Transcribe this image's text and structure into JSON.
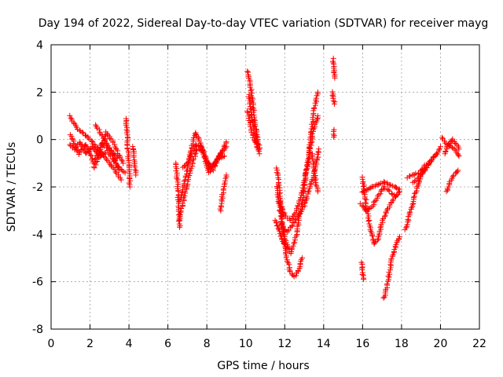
{
  "chart_data": {
    "type": "scatter",
    "title": "Day 194 of 2022, Sidereal Day-to-day VTEC variation (SDTVAR) for receiver mayg",
    "xlabel": "GPS time / hours",
    "ylabel": "SDTVAR / TECUs",
    "xlim": [
      0,
      22
    ],
    "ylim": [
      -8,
      4
    ],
    "xticks": [
      "0",
      "2",
      "4",
      "6",
      "8",
      "10",
      "12",
      "14",
      "16",
      "18",
      "20",
      "22"
    ],
    "yticks": [
      "-8",
      "-6",
      "-4",
      "-2",
      "0",
      "2",
      "4"
    ],
    "grid": true,
    "marker": "+",
    "color": "#ff0000",
    "arcs": [
      [
        [
          0.95,
          1.0
        ],
        [
          1.1,
          0.8
        ],
        [
          1.3,
          0.5
        ],
        [
          1.6,
          0.3
        ],
        [
          2.0,
          0.0
        ],
        [
          2.4,
          -0.4
        ],
        [
          2.8,
          -0.8
        ],
        [
          3.2,
          -1.2
        ],
        [
          3.6,
          -1.7
        ]
      ],
      [
        [
          0.95,
          -0.2
        ],
        [
          1.2,
          -0.4
        ],
        [
          1.5,
          -0.1
        ],
        [
          1.8,
          -0.6
        ],
        [
          2.1,
          -0.3
        ],
        [
          2.5,
          -0.7
        ],
        [
          2.9,
          -0.5
        ],
        [
          3.3,
          -1.0
        ],
        [
          3.8,
          -1.4
        ]
      ],
      [
        [
          1.0,
          0.2
        ],
        [
          1.4,
          -0.6
        ],
        [
          1.8,
          -0.2
        ],
        [
          2.2,
          -1.0
        ],
        [
          2.6,
          -0.2
        ],
        [
          3.0,
          -0.4
        ],
        [
          3.4,
          -0.8
        ]
      ],
      [
        [
          2.2,
          -1.2
        ],
        [
          2.5,
          -0.6
        ],
        [
          2.8,
          0.3
        ],
        [
          3.1,
          0.0
        ],
        [
          3.4,
          -0.5
        ],
        [
          3.7,
          -1.0
        ]
      ],
      [
        [
          2.3,
          0.6
        ],
        [
          2.6,
          0.2
        ],
        [
          2.9,
          -0.2
        ],
        [
          3.2,
          -0.7
        ],
        [
          3.5,
          -1.3
        ]
      ],
      [
        [
          3.85,
          0.9
        ],
        [
          3.9,
          0.2
        ],
        [
          3.95,
          -0.5
        ],
        [
          4.0,
          -1.2
        ],
        [
          4.05,
          -2.0
        ]
      ],
      [
        [
          4.2,
          -0.3
        ],
        [
          4.25,
          -0.6
        ],
        [
          4.3,
          -1.0
        ],
        [
          4.35,
          -1.5
        ]
      ],
      [
        [
          6.4,
          -1.0
        ],
        [
          6.5,
          -1.8
        ],
        [
          6.55,
          -2.8
        ],
        [
          6.6,
          -3.7
        ]
      ],
      [
        [
          6.6,
          -2.6
        ],
        [
          6.9,
          -1.6
        ],
        [
          7.2,
          -0.4
        ],
        [
          7.4,
          0.3
        ],
        [
          7.6,
          0.0
        ],
        [
          7.9,
          -0.8
        ],
        [
          8.2,
          -1.2
        ],
        [
          8.5,
          -0.9
        ],
        [
          8.8,
          -0.5
        ],
        [
          9.0,
          -0.1
        ]
      ],
      [
        [
          6.6,
          -3.4
        ],
        [
          6.9,
          -2.2
        ],
        [
          7.2,
          -1.2
        ],
        [
          7.5,
          -0.4
        ],
        [
          7.8,
          -0.5
        ],
        [
          8.1,
          -1.4
        ],
        [
          8.4,
          -1.0
        ],
        [
          8.7,
          -0.6
        ],
        [
          9.0,
          -0.3
        ]
      ],
      [
        [
          6.8,
          -1.2
        ],
        [
          7.1,
          -0.9
        ],
        [
          7.4,
          -0.2
        ],
        [
          7.7,
          -0.3
        ],
        [
          8.0,
          -0.9
        ],
        [
          8.3,
          -1.3
        ],
        [
          8.6,
          -0.8
        ],
        [
          8.9,
          -0.7
        ]
      ],
      [
        [
          8.7,
          -3.0
        ],
        [
          8.8,
          -2.4
        ],
        [
          8.9,
          -1.9
        ],
        [
          9.0,
          -1.5
        ]
      ],
      [
        [
          10.1,
          2.9
        ],
        [
          10.25,
          2.2
        ],
        [
          10.4,
          1.3
        ],
        [
          10.55,
          0.3
        ],
        [
          10.7,
          -0.4
        ]
      ],
      [
        [
          10.15,
          1.9
        ],
        [
          10.3,
          1.0
        ],
        [
          10.45,
          0.3
        ],
        [
          10.6,
          -0.3
        ]
      ],
      [
        [
          10.1,
          1.2
        ],
        [
          10.25,
          0.6
        ],
        [
          10.4,
          0.0
        ],
        [
          10.55,
          -0.2
        ],
        [
          10.7,
          -0.6
        ]
      ],
      [
        [
          11.6,
          -1.2
        ],
        [
          11.75,
          -2.3
        ],
        [
          11.9,
          -3.8
        ],
        [
          12.1,
          -5.0
        ],
        [
          12.3,
          -5.6
        ],
        [
          12.5,
          -5.8
        ],
        [
          12.7,
          -5.5
        ],
        [
          12.9,
          -5.0
        ]
      ],
      [
        [
          11.6,
          -2.0
        ],
        [
          11.8,
          -3.2
        ],
        [
          12.0,
          -4.2
        ],
        [
          12.3,
          -4.8
        ],
        [
          12.6,
          -4.0
        ],
        [
          12.9,
          -2.6
        ],
        [
          13.2,
          -0.8
        ],
        [
          13.5,
          1.2
        ],
        [
          13.7,
          2.0
        ]
      ],
      [
        [
          11.7,
          -2.6
        ],
        [
          12.0,
          -3.2
        ],
        [
          12.3,
          -3.4
        ],
        [
          12.6,
          -3.0
        ],
        [
          12.9,
          -2.2
        ],
        [
          13.2,
          -1.0
        ],
        [
          13.5,
          0.5
        ],
        [
          13.7,
          1.0
        ]
      ],
      [
        [
          11.8,
          -3.6
        ],
        [
          12.1,
          -3.9
        ],
        [
          12.4,
          -3.6
        ],
        [
          12.7,
          -3.2
        ],
        [
          13.0,
          -2.8
        ],
        [
          13.3,
          -2.0
        ],
        [
          13.6,
          -1.2
        ],
        [
          13.75,
          -0.4
        ]
      ],
      [
        [
          11.5,
          -3.4
        ],
        [
          11.7,
          -3.8
        ],
        [
          11.9,
          -4.3
        ],
        [
          12.1,
          -4.6
        ]
      ],
      [
        [
          13.4,
          -0.6
        ],
        [
          13.5,
          -1.2
        ],
        [
          13.6,
          -1.8
        ],
        [
          13.7,
          -2.2
        ]
      ],
      [
        [
          14.5,
          3.4
        ],
        [
          14.52,
          3.0
        ],
        [
          14.55,
          2.8
        ],
        [
          14.57,
          2.6
        ]
      ],
      [
        [
          14.45,
          2.0
        ],
        [
          14.5,
          1.8
        ],
        [
          14.55,
          1.5
        ]
      ],
      [
        [
          14.5,
          0.4
        ],
        [
          14.52,
          0.1
        ]
      ],
      [
        [
          16.0,
          -1.6
        ],
        [
          16.2,
          -2.8
        ],
        [
          16.4,
          -3.8
        ],
        [
          16.6,
          -4.4
        ],
        [
          16.8,
          -4.2
        ],
        [
          17.0,
          -3.5
        ],
        [
          17.3,
          -2.9
        ],
        [
          17.6,
          -2.5
        ],
        [
          17.9,
          -2.2
        ]
      ],
      [
        [
          15.95,
          -2.2
        ],
        [
          16.2,
          -2.1
        ],
        [
          16.5,
          -2.0
        ],
        [
          16.8,
          -1.9
        ],
        [
          17.1,
          -1.8
        ],
        [
          17.4,
          -1.9
        ],
        [
          17.7,
          -2.0
        ],
        [
          17.9,
          -2.1
        ]
      ],
      [
        [
          15.9,
          -2.7
        ],
        [
          16.2,
          -3.0
        ],
        [
          16.5,
          -2.8
        ],
        [
          16.8,
          -2.4
        ],
        [
          17.1,
          -2.0
        ],
        [
          17.4,
          -2.2
        ],
        [
          17.7,
          -2.4
        ]
      ],
      [
        [
          15.95,
          -5.2
        ],
        [
          16.0,
          -5.6
        ],
        [
          16.05,
          -5.9
        ]
      ],
      [
        [
          17.1,
          -6.7
        ],
        [
          17.3,
          -6.0
        ],
        [
          17.5,
          -5.0
        ],
        [
          17.7,
          -4.5
        ],
        [
          17.9,
          -4.1
        ]
      ],
      [
        [
          18.2,
          -3.8
        ],
        [
          18.4,
          -3.2
        ],
        [
          18.6,
          -2.6
        ],
        [
          18.8,
          -2.0
        ],
        [
          19.0,
          -1.5
        ],
        [
          19.2,
          -1.2
        ],
        [
          19.4,
          -1.0
        ]
      ],
      [
        [
          18.3,
          -1.6
        ],
        [
          18.6,
          -1.5
        ],
        [
          18.9,
          -1.4
        ],
        [
          19.2,
          -1.1
        ],
        [
          19.5,
          -0.9
        ],
        [
          19.8,
          -0.6
        ],
        [
          20.0,
          -0.3
        ]
      ],
      [
        [
          18.6,
          -1.8
        ],
        [
          18.9,
          -1.6
        ],
        [
          19.2,
          -1.3
        ],
        [
          19.5,
          -0.9
        ],
        [
          19.8,
          -0.6
        ]
      ],
      [
        [
          20.1,
          0.1
        ],
        [
          20.3,
          -0.2
        ],
        [
          20.5,
          -0.3
        ],
        [
          20.7,
          -0.4
        ],
        [
          20.95,
          -0.7
        ]
      ],
      [
        [
          20.2,
          -0.6
        ],
        [
          20.4,
          -0.2
        ],
        [
          20.6,
          0.0
        ],
        [
          20.8,
          -0.2
        ],
        [
          20.95,
          -0.4
        ]
      ],
      [
        [
          20.3,
          -2.2
        ],
        [
          20.5,
          -1.8
        ],
        [
          20.7,
          -1.5
        ],
        [
          20.9,
          -1.3
        ]
      ]
    ]
  }
}
